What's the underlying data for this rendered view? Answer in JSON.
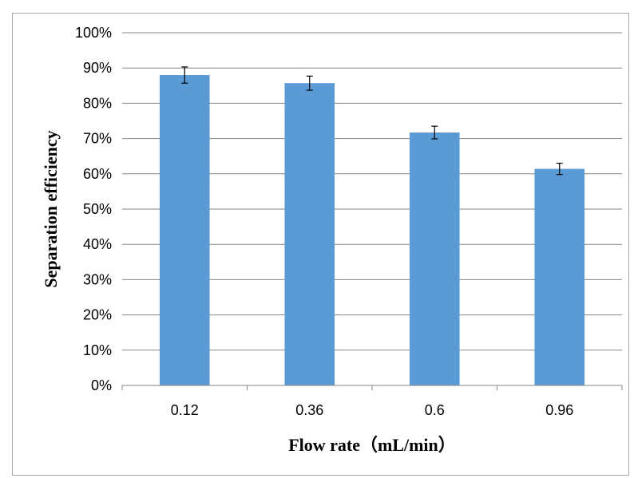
{
  "chart_data": {
    "type": "bar",
    "title": "",
    "xlabel": "Flow rate（mL/min）",
    "ylabel": "Separation efficiency",
    "categories": [
      "0.12",
      "0.36",
      "0.6",
      "0.96"
    ],
    "values": [
      0.88,
      0.857,
      0.717,
      0.614
    ],
    "error": [
      0.023,
      0.02,
      0.018,
      0.016
    ],
    "ylim": [
      0,
      1
    ],
    "yticks": [
      0,
      0.1,
      0.2,
      0.3,
      0.4,
      0.5,
      0.6,
      0.7,
      0.8,
      0.9,
      1.0
    ],
    "ytick_labels": [
      "0%",
      "10%",
      "20%",
      "30%",
      "40%",
      "50%",
      "60%",
      "70%",
      "80%",
      "90%",
      "100%"
    ],
    "grid": true,
    "bar_color": "#5b9bd5",
    "gridline_color": "#868686"
  }
}
